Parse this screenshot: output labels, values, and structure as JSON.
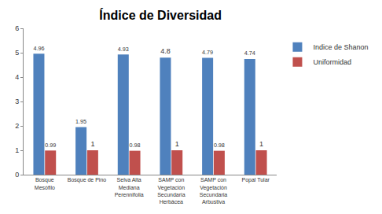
{
  "chart_data": {
    "type": "bar",
    "title": "Índice de Diversidad",
    "categories": [
      "Bosque Mesófilo",
      "Bosque de Pino",
      "Selva Alta Mediana Perennifolia",
      "SAMP con Vegetación Secundaria Herbácea",
      "SAMP con Vegetación Secundaria Arbustiva",
      "Popal Tular"
    ],
    "series": [
      {
        "name": "Indice de Shanon",
        "color": "#4f81bd",
        "values": [
          4.96,
          1.95,
          4.93,
          4.8,
          4.79,
          4.74
        ]
      },
      {
        "name": "Uniformidad",
        "color": "#c0504d",
        "values": [
          0.99,
          1,
          0.98,
          1,
          0.98,
          1
        ]
      }
    ],
    "ylim": [
      0,
      6
    ],
    "yticks": [
      0,
      1,
      2,
      3,
      4,
      5,
      6
    ],
    "grid": false,
    "legend": "right",
    "data_labels": true
  }
}
